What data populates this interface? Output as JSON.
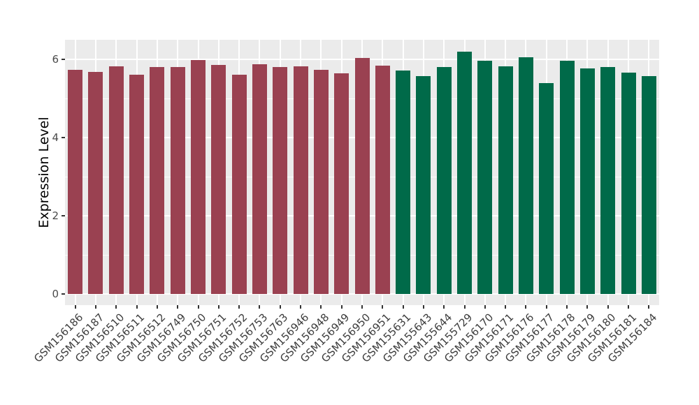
{
  "chart_data": {
    "type": "bar",
    "title": "",
    "xlabel": "",
    "ylabel": "Expression Level",
    "ylim": [
      0,
      6.5
    ],
    "y_ticks": [
      0,
      2,
      4,
      6
    ],
    "y_minor_ticks": [
      1,
      3,
      5
    ],
    "grid": true,
    "legend_position": "none",
    "panel_background": "#EBEBEB",
    "gridline_color": "#FFFFFF",
    "axis_text_color": "#3d3d3d",
    "categories": [
      "GSM156186",
      "GSM156187",
      "GSM156510",
      "GSM156511",
      "GSM156512",
      "GSM156749",
      "GSM156750",
      "GSM156751",
      "GSM156752",
      "GSM156753",
      "GSM156763",
      "GSM156946",
      "GSM156948",
      "GSM156949",
      "GSM156950",
      "GSM156951",
      "GSM155631",
      "GSM155643",
      "GSM155644",
      "GSM155729",
      "GSM156170",
      "GSM156171",
      "GSM156176",
      "GSM156177",
      "GSM156178",
      "GSM156179",
      "GSM156180",
      "GSM156181",
      "GSM156184"
    ],
    "values": [
      5.73,
      5.67,
      5.82,
      5.61,
      5.81,
      5.8,
      5.99,
      5.85,
      5.61,
      5.88,
      5.81,
      5.83,
      5.73,
      5.64,
      6.04,
      5.84,
      5.72,
      5.57,
      5.8,
      6.2,
      5.96,
      5.83,
      6.05,
      5.39,
      5.97,
      5.77,
      5.81,
      5.66,
      5.57
    ],
    "bar_groups": [
      "group1",
      "group1",
      "group1",
      "group1",
      "group1",
      "group1",
      "group1",
      "group1",
      "group1",
      "group1",
      "group1",
      "group1",
      "group1",
      "group1",
      "group1",
      "group1",
      "group2",
      "group2",
      "group2",
      "group2",
      "group2",
      "group2",
      "group2",
      "group2",
      "group2",
      "group2",
      "group2",
      "group2",
      "group2"
    ],
    "group_colors": {
      "group1": "#9A4151",
      "group2": "#006A49"
    }
  }
}
